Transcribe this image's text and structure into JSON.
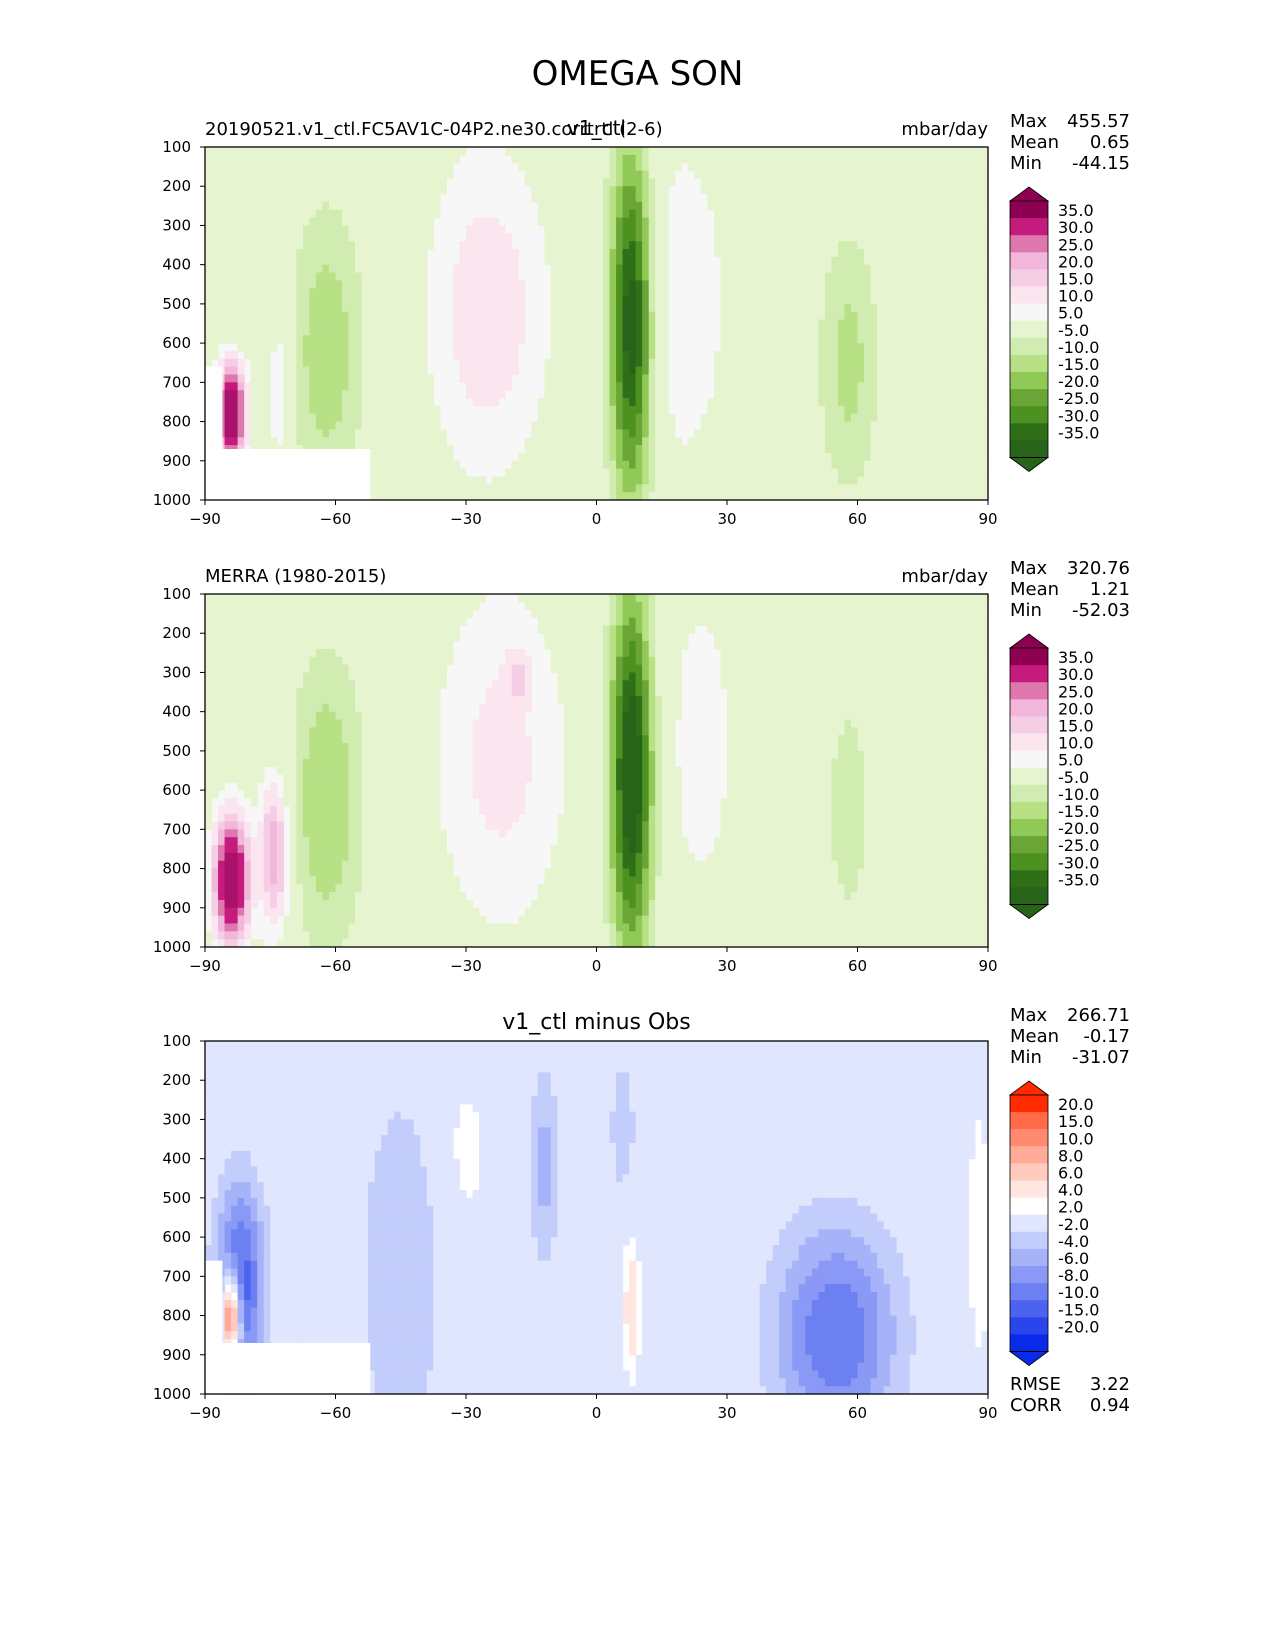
{
  "title": "OMEGA SON",
  "panels": [
    {
      "left_title": "20190521.v1_ctl.FC5AV1C-04P2.ne30.corrtrtl (2-6)",
      "center_title": "v1_ctl",
      "right_title": "mbar/day",
      "stats": [
        {
          "label": "Max",
          "value": "455.57"
        },
        {
          "label": "Mean",
          "value": "0.65"
        },
        {
          "label": "Min",
          "value": "-44.15"
        }
      ],
      "colorbar_kind": "omega",
      "field": "model"
    },
    {
      "left_title": "MERRA (1980-2015)",
      "center_title": "",
      "right_title": "mbar/day",
      "stats": [
        {
          "label": "Max",
          "value": "320.76"
        },
        {
          "label": "Mean",
          "value": "1.21"
        },
        {
          "label": "Min",
          "value": "-52.03"
        }
      ],
      "colorbar_kind": "omega",
      "field": "obs"
    },
    {
      "left_title": "",
      "center_title": "v1_ctl minus Obs",
      "right_title": "",
      "stats": [
        {
          "label": "Max",
          "value": "266.71"
        },
        {
          "label": "Mean",
          "value": "-0.17"
        },
        {
          "label": "Min",
          "value": "-31.07"
        }
      ],
      "extra_stats": [
        {
          "label": "RMSE",
          "value": "3.22"
        },
        {
          "label": "CORR",
          "value": "0.94"
        }
      ],
      "colorbar_kind": "diff",
      "field": "diff"
    }
  ],
  "chart_data": {
    "type": "heatmap",
    "title": "OMEGA SON",
    "units": "mbar/day",
    "x_ticks": [
      "−90",
      "−60",
      "−30",
      "0",
      "30",
      "60",
      "90"
    ],
    "x_values": [
      -90,
      -60,
      -30,
      0,
      30,
      60,
      90
    ],
    "y_ticks": [
      "100",
      "200",
      "300",
      "400",
      "500",
      "600",
      "700",
      "800",
      "900",
      "1000"
    ],
    "y_values": [
      100,
      200,
      300,
      400,
      500,
      600,
      700,
      800,
      900,
      1000
    ],
    "xlim": [
      -90,
      90
    ],
    "ylim": [
      1000,
      100
    ],
    "omega_levels": [
      "35.0",
      "30.0",
      "25.0",
      "20.0",
      "15.0",
      "10.0",
      "5.0",
      "-5.0",
      "-10.0",
      "-15.0",
      "-20.0",
      "-25.0",
      "-30.0",
      "-35.0"
    ],
    "omega_colors": [
      "#8e0152",
      "#a8126a",
      "#c51b7d",
      "#de77ae",
      "#f1b6da",
      "#f5cde4",
      "#fbe6f0",
      "#f7f7f7",
      "#e6f5d0",
      "#d1ecb0",
      "#b8e186",
      "#91c957",
      "#6aa637",
      "#4d9221",
      "#2f6f18",
      "#276419"
    ],
    "diff_levels": [
      "20.0",
      "15.0",
      "10.0",
      "8.0",
      "6.0",
      "4.0",
      "2.0",
      "-2.0",
      "-4.0",
      "-6.0",
      "-8.0",
      "-10.0",
      "-15.0",
      "-20.0"
    ],
    "diff_colors": [
      "#ff2a00",
      "#ff4a22",
      "#ff6a48",
      "#ff8a70",
      "#ffab98",
      "#ffcbbf",
      "#ffe6e0",
      "#ffffff",
      "#dfe6fd",
      "#c3cdfb",
      "#a6b3f8",
      "#8a99f5",
      "#6d80f2",
      "#4c63ef",
      "#2a45ec",
      "#0a2aea"
    ],
    "model_blobs": [
      {
        "lat": 8,
        "p": 550,
        "wlat": 3.5,
        "wp": 320,
        "v": -40
      },
      {
        "lat": -62,
        "p": 620,
        "wlat": 6,
        "wp": 260,
        "v": -14
      },
      {
        "lat": 58,
        "p": 650,
        "wlat": 5,
        "wp": 240,
        "v": -12
      },
      {
        "lat": -25,
        "p": 520,
        "wlat": 10,
        "wp": 300,
        "v": 14
      },
      {
        "lat": 20,
        "p": 500,
        "wlat": 7,
        "wp": 300,
        "v": 10
      },
      {
        "lat": -84,
        "p": 780,
        "wlat": 2.5,
        "wp": 90,
        "v": 45
      },
      {
        "lat": -73,
        "p": 720,
        "wlat": 2,
        "wp": 160,
        "v": 10
      }
    ],
    "obs_blobs": [
      {
        "lat": 8,
        "p": 560,
        "wlat": 3.5,
        "wp": 330,
        "v": -42
      },
      {
        "lat": -62,
        "p": 630,
        "wlat": 6,
        "wp": 270,
        "v": -15
      },
      {
        "lat": 58,
        "p": 650,
        "wlat": 4,
        "wp": 230,
        "v": -8
      },
      {
        "lat": -22,
        "p": 520,
        "wlat": 11,
        "wp": 320,
        "v": 12
      },
      {
        "lat": -18,
        "p": 310,
        "wlat": 2,
        "wp": 40,
        "v": 10
      },
      {
        "lat": 24,
        "p": 480,
        "wlat": 6,
        "wp": 320,
        "v": 8
      },
      {
        "lat": -84,
        "p": 830,
        "wlat": 3,
        "wp": 120,
        "v": 45
      },
      {
        "lat": -74,
        "p": 760,
        "wlat": 2.5,
        "wp": 140,
        "v": 25
      }
    ],
    "diff_blobs": [
      {
        "lat": -82,
        "p": 720,
        "wlat": 4,
        "wp": 180,
        "v": -12
      },
      {
        "lat": -84,
        "p": 800,
        "wlat": 1.5,
        "wp": 80,
        "v": 20
      },
      {
        "lat": 55,
        "p": 850,
        "wlat": 10,
        "wp": 200,
        "v": -10
      },
      {
        "lat": -45,
        "p": 700,
        "wlat": 7,
        "wp": 350,
        "v": -4
      },
      {
        "lat": 8,
        "p": 780,
        "wlat": 1.5,
        "wp": 130,
        "v": 6
      },
      {
        "lat": -12,
        "p": 420,
        "wlat": 2.5,
        "wp": 180,
        "v": -5
      },
      {
        "lat": 6,
        "p": 320,
        "wlat": 2,
        "wp": 120,
        "v": -4
      },
      {
        "lat": -30,
        "p": 380,
        "wlat": 4,
        "wp": 160,
        "v": 3
      },
      {
        "lat": 88,
        "p": 600,
        "wlat": 2,
        "wp": 250,
        "v": 4
      }
    ]
  }
}
